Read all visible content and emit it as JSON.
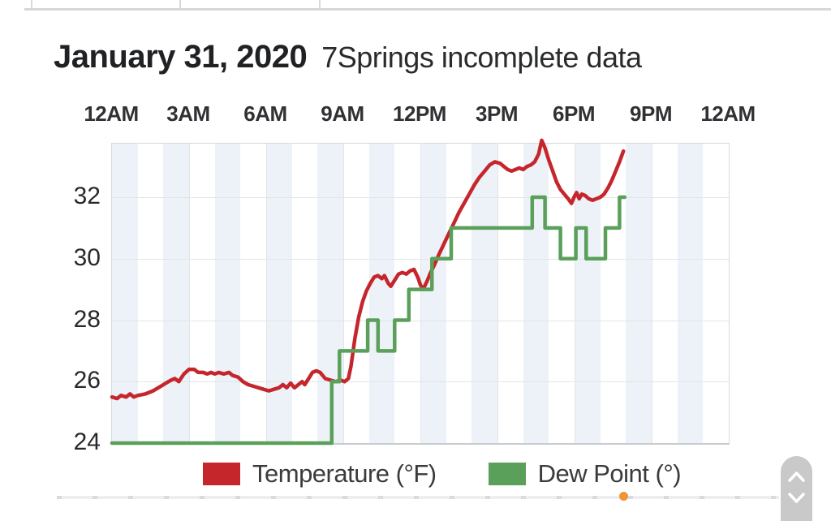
{
  "page": {
    "title_date": "January 31, 2020",
    "title_note": "7Springs incomplete data"
  },
  "top_table_remnant": {
    "column_border_x": [
      38,
      221,
      393
    ]
  },
  "legend": [
    {
      "label": "Temperature (°F)",
      "color": "#c5262c"
    },
    {
      "label": "Dew Point (°)",
      "color": "#5aa05a"
    }
  ],
  "chart_data": {
    "type": "line",
    "title": "January 31, 2020 — 7Springs incomplete data",
    "x_axis": {
      "unit": "hours_since_midnight",
      "range": [
        0,
        24
      ],
      "tick_hours": [
        0,
        3,
        6,
        9,
        12,
        15,
        18,
        21,
        24
      ],
      "tick_labels": [
        "12AM",
        "3AM",
        "6AM",
        "9AM",
        "12PM",
        "3PM",
        "6PM",
        "9PM",
        "12AM"
      ]
    },
    "y_axis": {
      "unit": "°F",
      "range_shown": [
        24,
        33.74
      ],
      "ticks": [
        32,
        30,
        28,
        26,
        24
      ]
    },
    "grid": {
      "color": "#e2e5e8",
      "band_color": "#edf2f8",
      "band_rule": "shaded every even hour, 1h wide"
    },
    "series": [
      {
        "name": "Temperature (°F)",
        "color": "#c5262c",
        "stroke_width": 4.5,
        "points": [
          [
            0,
            25.5
          ],
          [
            0.2,
            25.45
          ],
          [
            0.35,
            25.55
          ],
          [
            0.55,
            25.5
          ],
          [
            0.7,
            25.6
          ],
          [
            0.85,
            25.5
          ],
          [
            1.0,
            25.55
          ],
          [
            1.3,
            25.6
          ],
          [
            1.6,
            25.7
          ],
          [
            1.9,
            25.85
          ],
          [
            2.1,
            25.95
          ],
          [
            2.3,
            26.05
          ],
          [
            2.45,
            26.1
          ],
          [
            2.6,
            26.0
          ],
          [
            2.8,
            26.25
          ],
          [
            3.0,
            26.4
          ],
          [
            3.2,
            26.4
          ],
          [
            3.35,
            26.3
          ],
          [
            3.55,
            26.3
          ],
          [
            3.7,
            26.25
          ],
          [
            3.85,
            26.3
          ],
          [
            4.0,
            26.25
          ],
          [
            4.15,
            26.3
          ],
          [
            4.35,
            26.25
          ],
          [
            4.55,
            26.3
          ],
          [
            4.7,
            26.2
          ],
          [
            4.9,
            26.15
          ],
          [
            5.1,
            26.0
          ],
          [
            5.3,
            25.9
          ],
          [
            5.5,
            25.85
          ],
          [
            5.7,
            25.8
          ],
          [
            5.9,
            25.75
          ],
          [
            6.1,
            25.7
          ],
          [
            6.3,
            25.75
          ],
          [
            6.5,
            25.8
          ],
          [
            6.65,
            25.9
          ],
          [
            6.8,
            25.8
          ],
          [
            6.95,
            25.95
          ],
          [
            7.1,
            25.8
          ],
          [
            7.25,
            25.9
          ],
          [
            7.4,
            26.0
          ],
          [
            7.5,
            25.9
          ],
          [
            7.65,
            26.1
          ],
          [
            7.8,
            26.3
          ],
          [
            7.95,
            26.35
          ],
          [
            8.1,
            26.3
          ],
          [
            8.3,
            26.1
          ],
          [
            8.5,
            26.05
          ],
          [
            8.7,
            26.0
          ],
          [
            8.9,
            26.05
          ],
          [
            9.05,
            26.0
          ],
          [
            9.2,
            26.1
          ],
          [
            9.3,
            26.5
          ],
          [
            9.45,
            27.4
          ],
          [
            9.6,
            28.1
          ],
          [
            9.75,
            28.6
          ],
          [
            9.9,
            28.95
          ],
          [
            10.05,
            29.2
          ],
          [
            10.2,
            29.4
          ],
          [
            10.35,
            29.45
          ],
          [
            10.5,
            29.35
          ],
          [
            10.6,
            29.45
          ],
          [
            10.75,
            29.2
          ],
          [
            10.85,
            29.1
          ],
          [
            11.0,
            29.3
          ],
          [
            11.15,
            29.5
          ],
          [
            11.3,
            29.55
          ],
          [
            11.45,
            29.5
          ],
          [
            11.6,
            29.6
          ],
          [
            11.75,
            29.65
          ],
          [
            11.9,
            29.4
          ],
          [
            12.0,
            29.15
          ],
          [
            12.1,
            29.0
          ],
          [
            12.25,
            29.25
          ],
          [
            12.4,
            29.55
          ],
          [
            12.55,
            29.8
          ],
          [
            12.7,
            30.1
          ],
          [
            12.9,
            30.45
          ],
          [
            13.1,
            30.8
          ],
          [
            13.3,
            31.15
          ],
          [
            13.5,
            31.5
          ],
          [
            13.7,
            31.8
          ],
          [
            13.9,
            32.1
          ],
          [
            14.1,
            32.4
          ],
          [
            14.3,
            32.65
          ],
          [
            14.5,
            32.85
          ],
          [
            14.7,
            33.05
          ],
          [
            14.9,
            33.15
          ],
          [
            15.1,
            33.1
          ],
          [
            15.25,
            33.0
          ],
          [
            15.4,
            32.9
          ],
          [
            15.55,
            32.85
          ],
          [
            15.7,
            32.9
          ],
          [
            15.85,
            32.95
          ],
          [
            16.0,
            32.9
          ],
          [
            16.15,
            33.0
          ],
          [
            16.3,
            33.05
          ],
          [
            16.45,
            33.15
          ],
          [
            16.6,
            33.4
          ],
          [
            16.72,
            33.85
          ],
          [
            16.85,
            33.6
          ],
          [
            17.0,
            33.2
          ],
          [
            17.15,
            32.85
          ],
          [
            17.3,
            32.5
          ],
          [
            17.45,
            32.25
          ],
          [
            17.6,
            32.1
          ],
          [
            17.75,
            31.95
          ],
          [
            17.88,
            31.8
          ],
          [
            17.98,
            32.0
          ],
          [
            18.08,
            32.15
          ],
          [
            18.18,
            31.95
          ],
          [
            18.28,
            32.1
          ],
          [
            18.42,
            32.05
          ],
          [
            18.55,
            31.95
          ],
          [
            18.7,
            31.9
          ],
          [
            18.85,
            31.95
          ],
          [
            19.0,
            32.0
          ],
          [
            19.15,
            32.1
          ],
          [
            19.3,
            32.3
          ],
          [
            19.45,
            32.55
          ],
          [
            19.6,
            32.85
          ],
          [
            19.75,
            33.15
          ],
          [
            19.9,
            33.5
          ]
        ]
      },
      {
        "name": "Dew Point (°)",
        "color": "#5aa05a",
        "stroke_width": 4.5,
        "step": true,
        "points": [
          [
            0,
            24
          ],
          [
            8.55,
            24
          ],
          [
            8.55,
            26
          ],
          [
            8.85,
            26
          ],
          [
            8.85,
            27
          ],
          [
            9.95,
            27
          ],
          [
            9.95,
            28
          ],
          [
            10.35,
            28
          ],
          [
            10.35,
            27
          ],
          [
            11.0,
            27
          ],
          [
            11.0,
            28
          ],
          [
            11.55,
            28
          ],
          [
            11.55,
            29
          ],
          [
            12.45,
            29
          ],
          [
            12.45,
            30
          ],
          [
            13.2,
            30
          ],
          [
            13.2,
            31
          ],
          [
            16.35,
            31
          ],
          [
            16.35,
            32
          ],
          [
            16.85,
            32
          ],
          [
            16.85,
            31
          ],
          [
            17.45,
            31
          ],
          [
            17.45,
            30
          ],
          [
            18.05,
            30
          ],
          [
            18.05,
            31
          ],
          [
            18.45,
            31
          ],
          [
            18.45,
            30
          ],
          [
            19.2,
            30
          ],
          [
            19.2,
            31
          ],
          [
            19.75,
            31
          ],
          [
            19.75,
            32
          ],
          [
            19.95,
            32
          ]
        ]
      }
    ]
  },
  "misc": {
    "scroll_up_label": "scroll up",
    "scroll_down_label": "scroll down"
  }
}
